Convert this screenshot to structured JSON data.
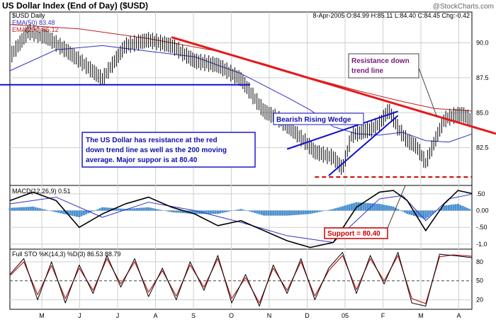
{
  "header": {
    "title": "US Dollar Index (End of Day) ($USD)",
    "watermark": "@StockCharts.com",
    "symbol_line": "$USD Daily",
    "quote_line": "8-Apr-2005 O:84.99 H:85.11 L:84.40 C:84.45 Chg:-0.42",
    "ema50_label": "EMA(50) 83.48",
    "ema200_label": "EMA(200) 85.12"
  },
  "annotations": {
    "resistance_line1": "Resistance down",
    "resistance_line2": "trend line",
    "wedge_label": "Bearish Rising Wedge",
    "commentary": [
      "The US Dollar has resistance at the red",
      "down trend line as well as the 200 moving",
      "average.  Major suppor is at 80.40"
    ],
    "support_label": "Support = 80.40"
  },
  "macd": {
    "label": "MACD(12,26,9) 0.51"
  },
  "sto": {
    "label": "Full STO %K(14,3) %D(3) 86.53 88.79"
  },
  "colors": {
    "price": "#000000",
    "ema50": "#3030c8",
    "ema200": "#c02020",
    "trend": "#e41a1a",
    "blue_line": "#1010cc",
    "histogram": "#4a90d0",
    "grid": "#cfcfcf",
    "note_border": "#1a1acc",
    "note_text": "#1010aa",
    "resistance_text": "#7a1a7a",
    "support_border": "#cc0000"
  },
  "chart_data": [
    {
      "type": "line",
      "title": "US Dollar Index (End of Day) ($USD)",
      "ylim": [
        79.8,
        92.2
      ],
      "yticks": [
        82.5,
        85.0,
        87.5,
        90.0
      ],
      "ytick_labels": [
        "82.5",
        "85.0",
        "87.5",
        "90.0"
      ],
      "x_labels": [
        "M",
        "J",
        "J",
        "A",
        "S",
        "O",
        "N",
        "D",
        "05",
        "F",
        "M",
        "A"
      ],
      "series": [
        {
          "key": "price",
          "x": [
            0,
            0.04,
            0.08,
            0.12,
            0.16,
            0.2,
            0.25,
            0.3,
            0.35,
            0.4,
            0.45,
            0.5,
            0.55,
            0.58,
            0.61,
            0.64,
            0.66,
            0.68,
            0.7,
            0.72,
            0.74,
            0.76,
            0.78,
            0.8,
            0.82,
            0.84,
            0.86,
            0.88,
            0.9,
            0.92,
            0.94,
            0.96,
            0.98,
            1.0
          ],
          "values": [
            89.0,
            90.8,
            90.4,
            89.5,
            88.5,
            87.4,
            89.8,
            90.2,
            89.8,
            88.7,
            88.4,
            87.4,
            85.1,
            84.6,
            83.8,
            82.9,
            82.2,
            82.0,
            81.8,
            81.0,
            83.4,
            83.6,
            83.8,
            84.2,
            85.2,
            83.9,
            83.0,
            82.6,
            81.4,
            83.0,
            84.5,
            84.8,
            84.9,
            84.45
          ]
        },
        {
          "name": "EMA(50)",
          "key": "ema50",
          "x": [
            0,
            0.1,
            0.2,
            0.3,
            0.4,
            0.5,
            0.6,
            0.65,
            0.7,
            0.75,
            0.8,
            0.85,
            0.9,
            0.95,
            1.0
          ],
          "values": [
            88.0,
            89.5,
            89.8,
            89.4,
            89.0,
            87.8,
            86.1,
            85.2,
            84.0,
            83.5,
            83.4,
            83.6,
            83.0,
            82.9,
            83.48
          ]
        },
        {
          "name": "EMA(200)",
          "key": "ema200",
          "x": [
            0,
            0.15,
            0.3,
            0.45,
            0.55,
            0.65,
            0.75,
            0.85,
            0.92,
            1.0
          ],
          "values": [
            91.3,
            91.0,
            90.3,
            89.4,
            88.5,
            87.5,
            86.6,
            85.8,
            85.3,
            85.12
          ]
        }
      ],
      "annotations": {
        "resistance_trend_line": {
          "x": [
            0.35,
            1.0
          ],
          "y": [
            90.4,
            83.9
          ]
        },
        "horizontal_line": {
          "x": [
            0.0,
            0.52
          ],
          "y": [
            87.0,
            87.0
          ]
        },
        "wedge_upper": {
          "x": [
            0.6,
            0.84
          ],
          "y": [
            82.4,
            85.1
          ]
        },
        "wedge_lower": {
          "x": [
            0.69,
            0.84
          ],
          "y": [
            80.5,
            84.8
          ]
        },
        "support_line": {
          "x": [
            0.66,
            1.0
          ],
          "y": [
            80.4,
            80.4
          ]
        }
      }
    },
    {
      "type": "line",
      "title": "MACD(12,26,9) 0.51",
      "ylim": [
        -1.15,
        0.75
      ],
      "yticks": [
        0.5,
        0.0,
        -0.5,
        -1.0
      ],
      "ytick_labels": [
        ".50",
        "0.00",
        "-.50",
        "-1.0"
      ],
      "series": [
        {
          "key": "macd",
          "x": [
            0,
            0.05,
            0.1,
            0.15,
            0.2,
            0.25,
            0.3,
            0.35,
            0.4,
            0.45,
            0.5,
            0.55,
            0.6,
            0.65,
            0.7,
            0.75,
            0.8,
            0.83,
            0.86,
            0.9,
            0.94,
            0.97,
            1.0
          ],
          "values": [
            0.3,
            0.55,
            0.3,
            -0.5,
            -0.1,
            0.2,
            0.4,
            0.1,
            -0.1,
            -0.45,
            -0.3,
            -0.6,
            -0.9,
            -1.1,
            -0.95,
            0.1,
            0.55,
            0.6,
            0.3,
            -0.6,
            0.2,
            0.6,
            0.51
          ]
        },
        {
          "key": "signal",
          "x": [
            0,
            0.1,
            0.2,
            0.3,
            0.4,
            0.5,
            0.6,
            0.7,
            0.8,
            0.85,
            0.9,
            0.95,
            1.0
          ],
          "values": [
            0.2,
            0.4,
            -0.2,
            0.25,
            0.0,
            -0.35,
            -0.75,
            -0.95,
            0.35,
            0.45,
            -0.3,
            0.35,
            0.49
          ]
        },
        {
          "key": "histogram",
          "x": [
            0,
            0.05,
            0.1,
            0.15,
            0.2,
            0.25,
            0.3,
            0.35,
            0.4,
            0.45,
            0.5,
            0.55,
            0.6,
            0.65,
            0.7,
            0.75,
            0.8,
            0.83,
            0.86,
            0.9,
            0.94,
            0.97,
            1.0
          ],
          "values": [
            0.08,
            0.12,
            -0.05,
            -0.2,
            0.1,
            0.05,
            0.1,
            -0.05,
            -0.1,
            -0.1,
            0.05,
            -0.15,
            -0.15,
            -0.1,
            0.05,
            0.25,
            0.2,
            0.12,
            -0.1,
            -0.25,
            0.15,
            0.2,
            0.02
          ]
        }
      ]
    },
    {
      "type": "line",
      "title": "Full STO %K(14,3) %D(3) 86.53 88.79",
      "ylim": [
        5,
        100
      ],
      "yticks": [
        80,
        50,
        20
      ],
      "ytick_labels": [
        "80",
        "50",
        "20"
      ],
      "series": [
        {
          "key": "k",
          "x": [
            0,
            0.03,
            0.06,
            0.09,
            0.12,
            0.15,
            0.18,
            0.21,
            0.24,
            0.27,
            0.3,
            0.33,
            0.36,
            0.39,
            0.42,
            0.45,
            0.48,
            0.51,
            0.54,
            0.57,
            0.6,
            0.63,
            0.66,
            0.69,
            0.72,
            0.75,
            0.78,
            0.81,
            0.84,
            0.87,
            0.9,
            0.93,
            0.96,
            1.0
          ],
          "values": [
            60,
            85,
            20,
            80,
            15,
            75,
            30,
            90,
            40,
            85,
            25,
            70,
            20,
            80,
            35,
            90,
            15,
            60,
            10,
            75,
            30,
            85,
            20,
            70,
            95,
            30,
            90,
            45,
            95,
            15,
            10,
            92,
            90,
            86.53
          ]
        },
        {
          "key": "d",
          "x": [
            0,
            0.03,
            0.06,
            0.09,
            0.12,
            0.15,
            0.18,
            0.21,
            0.24,
            0.27,
            0.3,
            0.33,
            0.36,
            0.39,
            0.42,
            0.45,
            0.48,
            0.51,
            0.54,
            0.57,
            0.6,
            0.63,
            0.66,
            0.69,
            0.72,
            0.75,
            0.78,
            0.81,
            0.84,
            0.87,
            0.9,
            0.93,
            0.96,
            1.0
          ],
          "values": [
            58,
            80,
            28,
            74,
            22,
            70,
            35,
            85,
            45,
            80,
            32,
            66,
            26,
            75,
            40,
            85,
            22,
            55,
            15,
            70,
            35,
            80,
            26,
            66,
            90,
            36,
            85,
            50,
            90,
            22,
            14,
            88,
            91,
            88.79
          ]
        }
      ]
    }
  ]
}
